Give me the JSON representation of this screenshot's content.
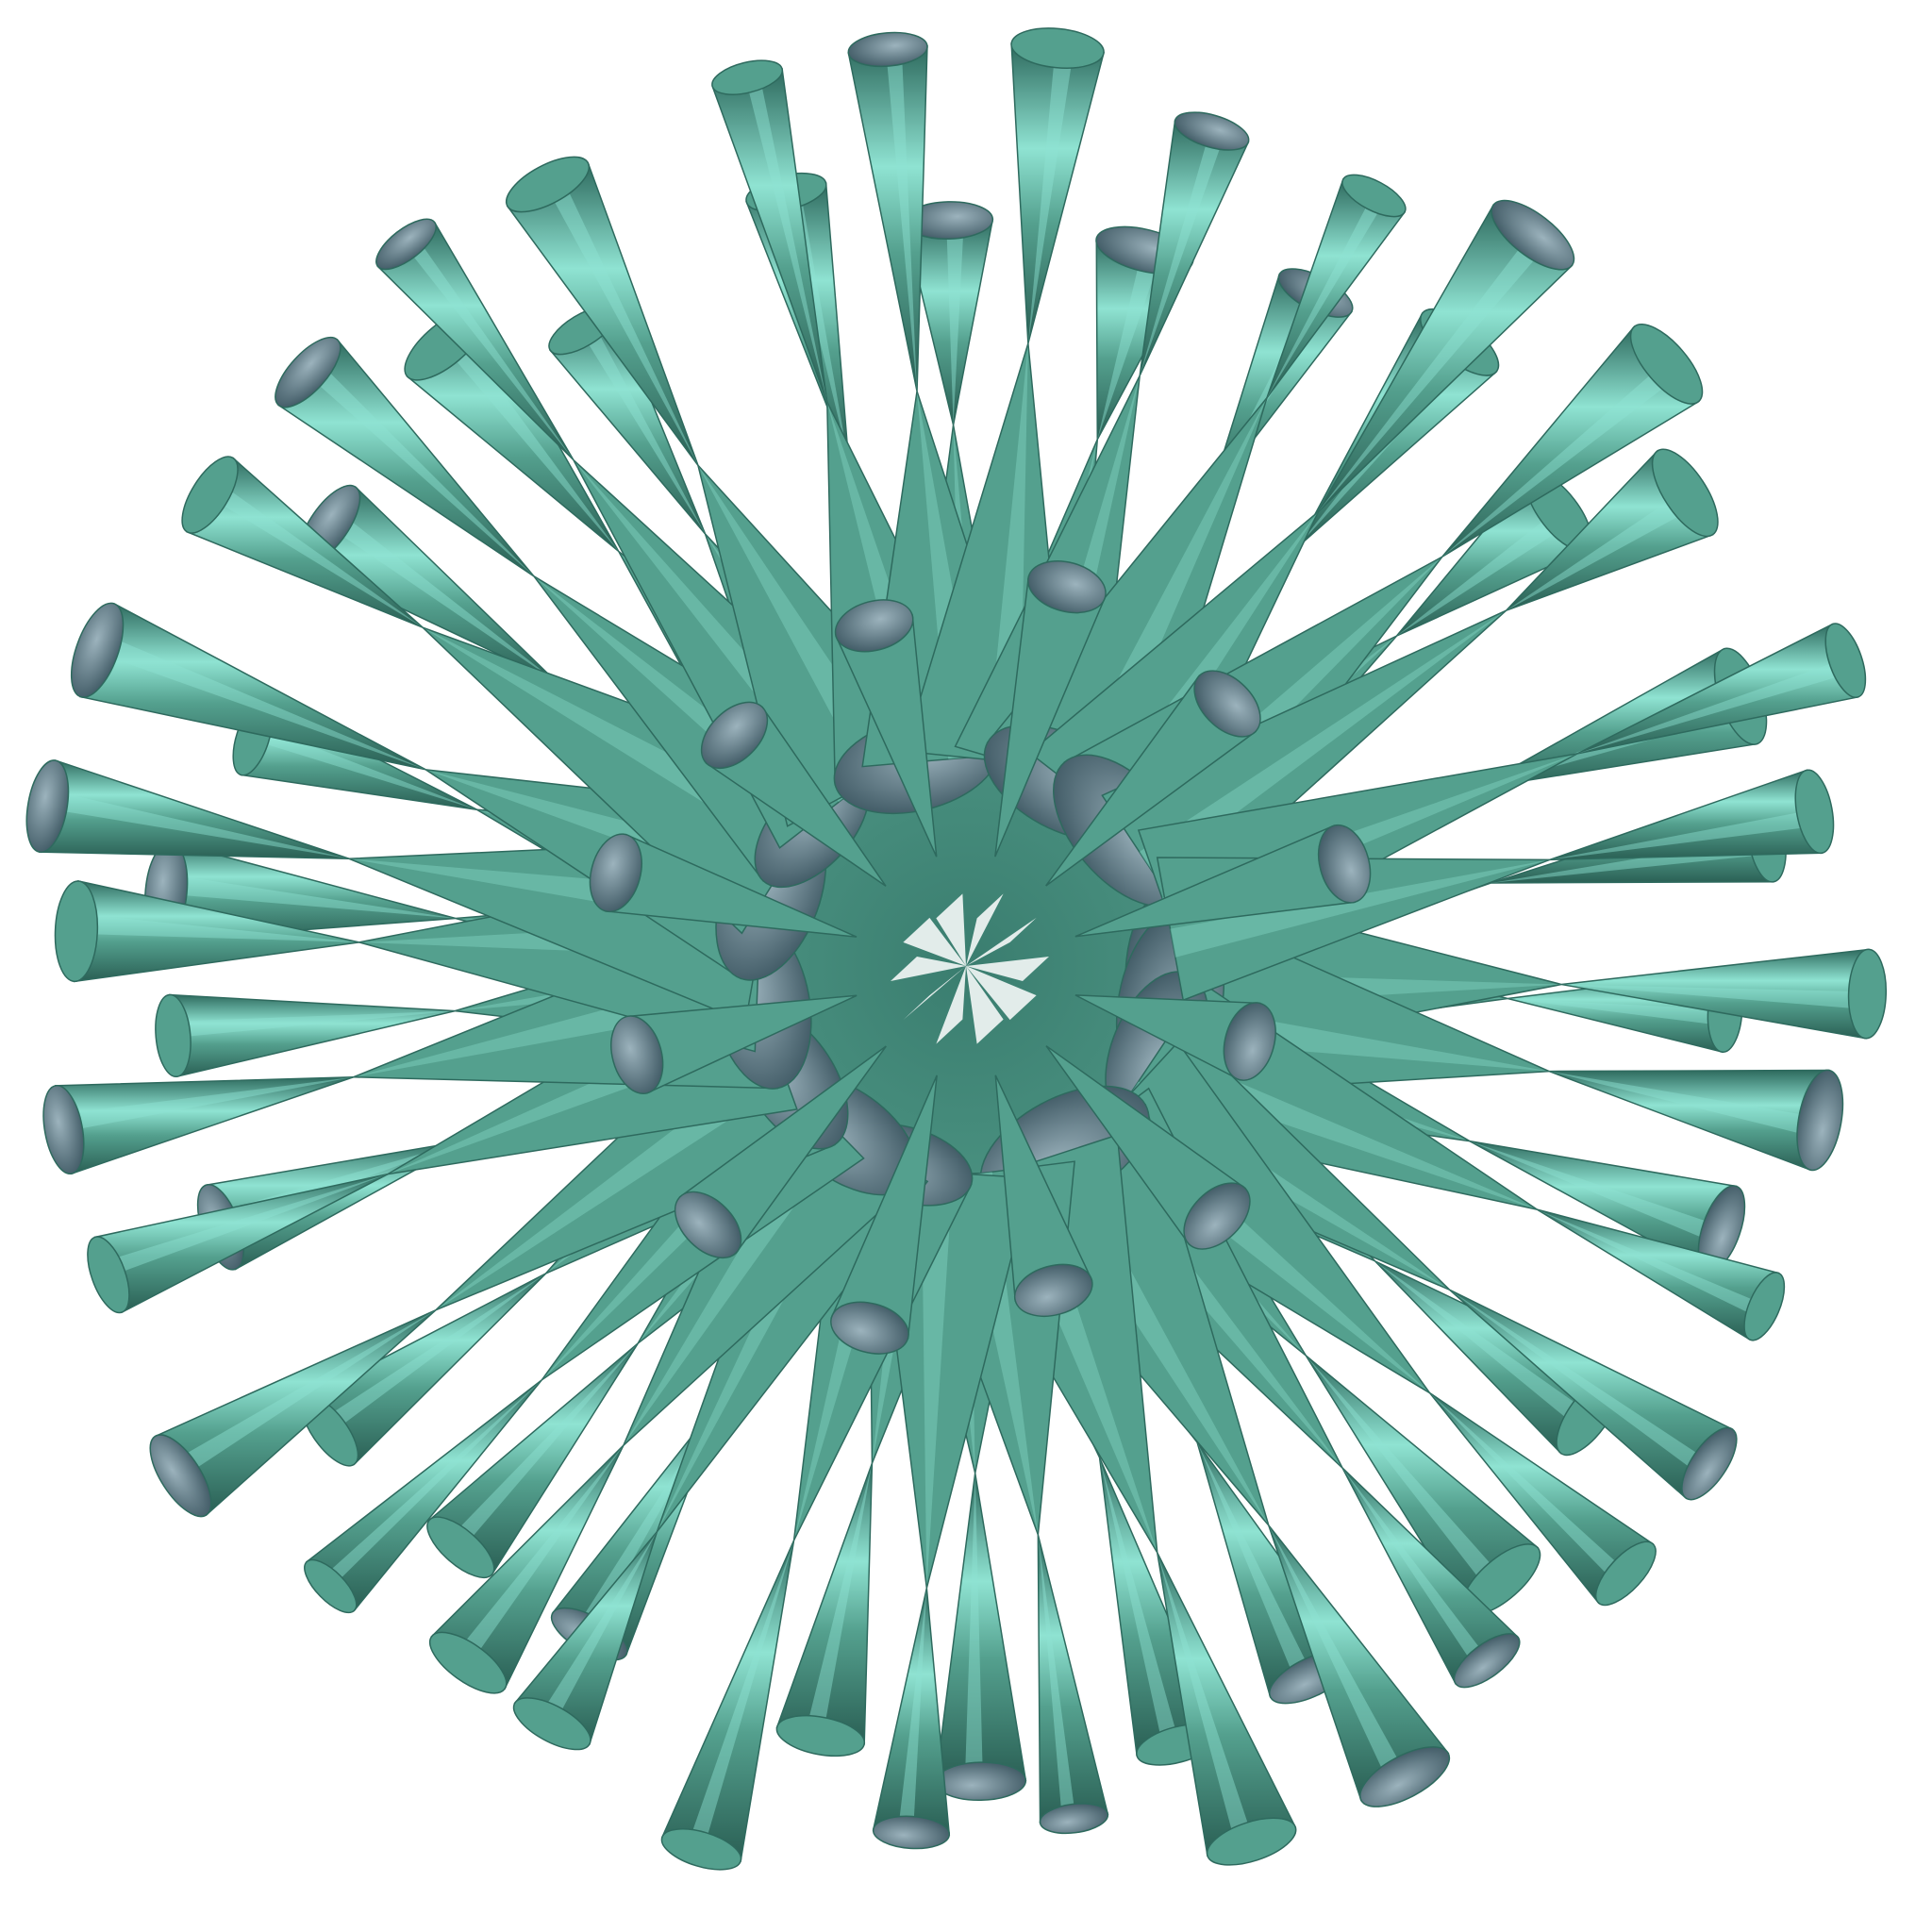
{
  "scene": {
    "subject": "spiky-double-cone-algebraic-surface",
    "colors": {
      "background": "#ffffff",
      "surface_light": "#8fe3d2",
      "surface_mid": "#54a08e",
      "surface_dark": "#2e6a5e",
      "inner_light": "#9cb3bd",
      "inner_dark": "#3b5560"
    }
  }
}
